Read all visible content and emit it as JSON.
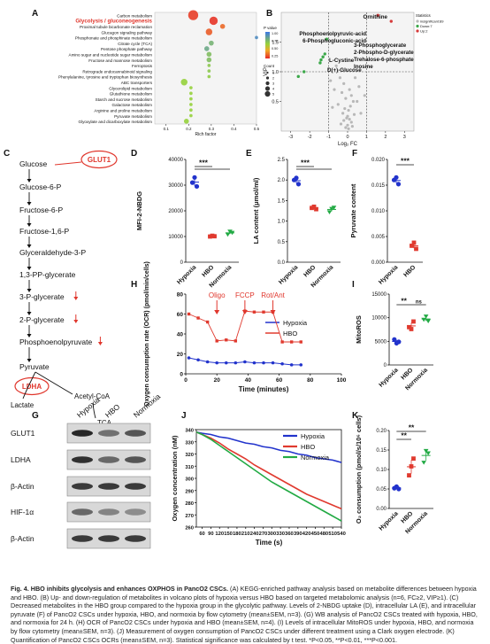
{
  "caption": {
    "title": "Fig. 4. HBO inhibits glycolysis and enhances OXPHOS in PancO2 CSCs.",
    "body": "(A) KEGG-enriched pathway analysis based on metabolite differences between hypoxia and HBO. (B) Up- and down-regulation of metabolites in volcano plots of hypoxia versus HBO based on targeted metabolomic analysis (n=6, FC≥2, VIP≥1). (C) Decreased metabolites in the HBO group compared to the hypoxia group in the glycolytic pathway. Levels of 2-NBDG uptake (D), intracellular LA (E), and intracellular pyruvate (F) of PancO2 CSCs under hypoxia, HBO, and normoxia by flow cytometry (mean±SEM, n=3). (G) WB analysis of PancO2 CSCs treated with hypoxia, HBO, and normoxia for 24 h. (H) OCR of PancO2 CSCs under hypoxia and HBO (mean±SEM, n=4). (I) Levels of intracellular MitoROS under hypoxia, HBO, and normoxia by flow cytometry (mean±SEM, n=3). (J) Measurement of oxygen consumption of PancO2 CSCs under different treatment using a Clark oxygen electrode. (K) Quantification of PancO2 CSCs OCRs (mean±SEM, n=3). Statistical significance was calculated by t test. *P<0.05, **P<0.01, ***P<0.001."
  },
  "panel_letters": [
    "A",
    "B",
    "C",
    "D",
    "E",
    "F",
    "G",
    "H",
    "I",
    "J",
    "K"
  ],
  "colors": {
    "hypoxia": "#2233cc",
    "hbo": "#e03a2f",
    "normoxia": "#22aa44",
    "sig_red": "#e0362c"
  },
  "pathway": {
    "highlight": "Glycolysis / gluconeogenesis",
    "enzymes": [
      "GLUT1",
      "LDHA"
    ],
    "chain": [
      "Glucose",
      "Glucose-6-P",
      "Fructose-6-P",
      "Fructose-1,6-P",
      "Glyceraldehyde-3-P",
      "1,3-PP-glycerate",
      "3-P-glycerate",
      "2-P-glycerate",
      "Phosphoenolpyruvate",
      "Pyruvate"
    ],
    "down_marked": [
      "3-P-glycerate",
      "2-P-glycerate",
      "Phosphoenolpyruvate"
    ],
    "branches": [
      "Lactate",
      "Acetyl-CoA",
      "TCA"
    ]
  },
  "western": {
    "lanes": [
      "Hypoxia",
      "HBO",
      "Normoxia"
    ],
    "proteins": [
      "GLUT1",
      "LDHA",
      "β-Actin",
      "HIF-1α",
      "β-Actin"
    ]
  },
  "chart_data": [
    {
      "panel": "A",
      "type": "scatter",
      "xlabel": "Rich factor",
      "xlim": [
        0.05,
        0.5
      ],
      "x_ticks": [
        "0.1",
        "0.2",
        "0.3",
        "0.4",
        "0.5"
      ],
      "legend_pvalue": {
        "title": "P value",
        "ticks": [
          "1.00",
          "0.75",
          "0.50",
          "0.25"
        ]
      },
      "legend_count": {
        "title": "Count",
        "values": [
          "1",
          "2",
          "3",
          "4",
          "5"
        ]
      },
      "categories": [
        "Carbon metabolism",
        "Glycolysis / gluconeogenesis",
        "Proximal tubule bicarbonate reclamation",
        "Glucagon signaling pathway",
        "Phosphonate and phosphinate metabolism",
        "Citrate cycle (TCA)",
        "Pentose phosphate pathway",
        "Amino sugar and nucleotide sugar metabolism",
        "Fructose and mannose metabolism",
        "Ferroptosis",
        "Retrograde endocannabinoid signaling",
        "Phenylalanine, tyrosine and tryptophan biosynthesis",
        "ABC transporters",
        "Glycerolipid metabolism",
        "Glutathione metabolism",
        "Starch and sucrose metabolism",
        "Galactose metabolism",
        "Arginine and proline metabolism",
        "Pyruvate metabolism",
        "Glyoxylate and dicarboxylate metabolism"
      ],
      "x": [
        0.22,
        0.31,
        0.35,
        0.29,
        0.5,
        0.3,
        0.28,
        0.29,
        0.29,
        0.29,
        0.29,
        0.29,
        0.18,
        0.21,
        0.21,
        0.21,
        0.21,
        0.21,
        0.21,
        0.19
      ],
      "count": [
        5,
        4,
        2,
        3,
        1,
        2,
        2,
        2,
        2,
        1,
        1,
        1,
        3,
        1,
        1,
        1,
        1,
        1,
        1,
        2
      ],
      "pvalue": [
        0.05,
        0.03,
        0.15,
        0.12,
        0.9,
        0.7,
        0.75,
        0.65,
        0.65,
        0.6,
        0.6,
        0.58,
        0.55,
        0.55,
        0.55,
        0.55,
        0.55,
        0.55,
        0.55,
        0.55
      ]
    },
    {
      "panel": "B",
      "type": "scatter",
      "xlabel": "Log₂ FC",
      "ylabel": "VIP",
      "xlim": [
        -3.5,
        3.5
      ],
      "ylim": [
        0,
        2
      ],
      "x_ticks": [
        "-3",
        "-2",
        "-1",
        "0",
        "1",
        "2",
        "3"
      ],
      "y_ticks": [
        "0.5",
        "1.0",
        "1.5"
      ],
      "legend": {
        "title": "Statistics",
        "items": [
          "insignificant:89",
          "Down:7",
          "Up:2"
        ]
      },
      "labels": [
        "Ornithine",
        "Phosphoenolpyruvic-acid",
        "6-Phosphogluconic-acid",
        "3-Phosphoglycerate",
        "2-Phospho-D-glycerate",
        "Trehalose-6-phosphate",
        "Inosine",
        "L-Cystine",
        "D(+)-Glucose"
      ],
      "up": [
        [
          1.6,
          1.95
        ],
        [
          2.3,
          1.85
        ]
      ],
      "down": [
        [
          -1.1,
          1.55
        ],
        [
          -1.2,
          1.3
        ],
        [
          -1.3,
          1.25
        ],
        [
          -1.4,
          1.2
        ],
        [
          -1.45,
          1.15
        ],
        [
          -2.3,
          1.0
        ],
        [
          -2.6,
          0.92
        ]
      ],
      "insignificant": [
        [
          -0.6,
          1.1
        ],
        [
          -0.4,
          0.9
        ],
        [
          -0.2,
          0.8
        ],
        [
          0.1,
          0.7
        ],
        [
          -0.3,
          0.65
        ],
        [
          0.2,
          0.6
        ],
        [
          -0.1,
          0.55
        ],
        [
          0.3,
          0.5
        ],
        [
          -0.5,
          0.45
        ],
        [
          0.15,
          0.42
        ],
        [
          -0.15,
          0.38
        ],
        [
          0.05,
          0.35
        ],
        [
          -0.25,
          0.3
        ],
        [
          0.35,
          0.28
        ],
        [
          0.0,
          0.25
        ],
        [
          -0.05,
          0.22
        ],
        [
          0.1,
          0.2
        ],
        [
          -0.2,
          0.18
        ],
        [
          0.2,
          0.15
        ],
        [
          -0.35,
          0.12
        ],
        [
          0.0,
          0.1
        ],
        [
          0.25,
          0.08
        ],
        [
          -0.1,
          0.06
        ],
        [
          0.05,
          0.04
        ],
        [
          0.4,
          0.9
        ],
        [
          0.6,
          0.75
        ],
        [
          -0.7,
          0.7
        ],
        [
          0.5,
          0.5
        ],
        [
          -0.8,
          0.4
        ],
        [
          0.7,
          0.3
        ],
        [
          0.9,
          0.6
        ],
        [
          -0.9,
          0.85
        ]
      ]
    },
    {
      "panel": "D",
      "type": "scatter",
      "ylabel": "MFI-2-NBDG",
      "ylim": [
        0,
        40000
      ],
      "y_ticks": [
        "0",
        "10000",
        "20000",
        "30000",
        "40000"
      ],
      "categories": [
        "Hypoxia",
        "HBO",
        "Normoxia"
      ],
      "series": [
        {
          "values": [
            [
              31000,
              33000,
              29500
            ],
            [
              10000,
              10300,
              10100
            ],
            [
              10800,
              12000,
              11500
            ]
          ]
        }
      ],
      "significance": [
        {
          "from": "Hypoxia",
          "to": "HBO",
          "label": "***"
        },
        {
          "from": "Hypoxia",
          "to": "Normoxia",
          "label": ""
        }
      ]
    },
    {
      "panel": "E",
      "type": "scatter",
      "ylabel": "LA content (μmol/ml)",
      "ylim": [
        0,
        2.5
      ],
      "y_ticks": [
        "0.0",
        "0.5",
        "1.0",
        "1.5",
        "2.0",
        "2.5"
      ],
      "categories": [
        "Hypoxia",
        "HBO",
        "Normoxia"
      ],
      "series": [
        {
          "values": [
            [
              2.0,
              2.05,
              1.9
            ],
            [
              1.32,
              1.35,
              1.29
            ],
            [
              1.22,
              1.3,
              1.33
            ]
          ]
        }
      ],
      "significance": [
        {
          "from": "Hypoxia",
          "to": "HBO",
          "label": "***"
        },
        {
          "from": "Hypoxia",
          "to": "Normoxia",
          "label": ""
        }
      ]
    },
    {
      "panel": "F",
      "type": "scatter",
      "ylabel": "Pyruvate content",
      "ylim": [
        0,
        0.02
      ],
      "y_ticks": [
        "0.000",
        "0.005",
        "0.010",
        "0.015",
        "0.020"
      ],
      "categories": [
        "Hypoxia",
        "HBO"
      ],
      "series": [
        {
          "values": [
            [
              0.016,
              0.0165,
              0.0152
            ],
            [
              0.0032,
              0.0038,
              0.0026
            ]
          ]
        }
      ],
      "significance": [
        {
          "from": "Hypoxia",
          "to": "HBO",
          "label": "***"
        }
      ]
    },
    {
      "panel": "H",
      "type": "line",
      "xlabel": "Time (minutes)",
      "ylabel": "Oxygen consumption rate (OCR) (pmol/min/cells)",
      "xlim": [
        0,
        100
      ],
      "ylim": [
        0,
        80
      ],
      "x_ticks": [
        "0",
        "20",
        "40",
        "60",
        "80",
        "100"
      ],
      "y_ticks": [
        "0",
        "20",
        "40",
        "60",
        "80"
      ],
      "annotations": [
        "Oligo",
        "FCCP",
        "Rot/Ant"
      ],
      "annotation_x": [
        20,
        38,
        56
      ],
      "legend": "top-right",
      "x": [
        2,
        8,
        14,
        20,
        26,
        32,
        38,
        44,
        50,
        56,
        62,
        68,
        74
      ],
      "series": [
        {
          "name": "Hypoxia",
          "values": [
            16,
            14,
            12,
            11,
            11,
            11,
            12,
            11,
            11,
            11,
            10,
            9,
            9
          ]
        },
        {
          "name": "HBO",
          "values": [
            60,
            56,
            52,
            33,
            34,
            33,
            63,
            62,
            62,
            62,
            32,
            32,
            32
          ]
        }
      ]
    },
    {
      "panel": "I",
      "type": "scatter",
      "ylabel": "MitoROS",
      "ylim": [
        0,
        15000
      ],
      "y_ticks": [
        "0",
        "5000",
        "10000",
        "15000"
      ],
      "categories": [
        "Hypoxia",
        "HBO",
        "Normoxia"
      ],
      "series": [
        {
          "values": [
            [
              5400,
              4600,
              4900
            ],
            [
              8000,
              7600,
              9200
            ],
            [
              9600,
              10300,
              9300
            ]
          ]
        }
      ],
      "significance": [
        {
          "from": "Hypoxia",
          "to": "HBO",
          "label": "**"
        },
        {
          "from": "HBO",
          "to": "Normoxia",
          "label": "ns"
        }
      ]
    },
    {
      "panel": "J",
      "type": "line",
      "xlabel": "Time (s)",
      "ylabel": "Oxygen concentration (nM)",
      "xlim": [
        40,
        540
      ],
      "ylim": [
        260,
        340
      ],
      "x_ticks": [
        "60",
        "90",
        "120",
        "150",
        "180",
        "210",
        "240",
        "270",
        "300",
        "330",
        "360",
        "390",
        "420",
        "450",
        "480",
        "510",
        "540"
      ],
      "y_ticks": [
        "260",
        "270",
        "280",
        "290",
        "300",
        "310",
        "320",
        "330",
        "340"
      ],
      "legend": "top-right",
      "x": [
        40,
        60,
        90,
        120,
        150,
        180,
        210,
        240,
        270,
        300,
        330,
        360,
        390,
        420,
        450,
        480,
        510,
        540
      ],
      "series": [
        {
          "name": "Hypoxia",
          "values": [
            338,
            337,
            336,
            334,
            333,
            331,
            329,
            328,
            326,
            325,
            323,
            322,
            320,
            319,
            317,
            316,
            315,
            313
          ]
        },
        {
          "name": "HBO",
          "values": [
            338,
            336,
            333,
            329,
            324,
            320,
            316,
            311,
            307,
            303,
            299,
            295,
            291,
            287,
            284,
            281,
            278,
            275
          ]
        },
        {
          "name": "Normoxia",
          "values": [
            338,
            336,
            332,
            327,
            322,
            317,
            312,
            307,
            302,
            297,
            293,
            289,
            285,
            281,
            277,
            273,
            269,
            265
          ]
        }
      ]
    },
    {
      "panel": "K",
      "type": "scatter",
      "ylabel": "O₂ consumption (pmol/s/10⁶ cells)",
      "ylim": [
        0,
        0.2
      ],
      "y_ticks": [
        "0.00",
        "0.05",
        "0.10",
        "0.15",
        "0.20"
      ],
      "categories": [
        "Hypoxia",
        "HBO",
        "Normoxia"
      ],
      "series": [
        {
          "values": [
            [
              0.052,
              0.056,
              0.05
            ],
            [
              0.085,
              0.108,
              0.128
            ],
            [
              0.118,
              0.148,
              0.142
            ]
          ]
        }
      ],
      "significance": [
        {
          "from": "Hypoxia",
          "to": "HBO",
          "label": "**"
        },
        {
          "from": "Hypoxia",
          "to": "Normoxia",
          "label": "**"
        }
      ]
    }
  ]
}
